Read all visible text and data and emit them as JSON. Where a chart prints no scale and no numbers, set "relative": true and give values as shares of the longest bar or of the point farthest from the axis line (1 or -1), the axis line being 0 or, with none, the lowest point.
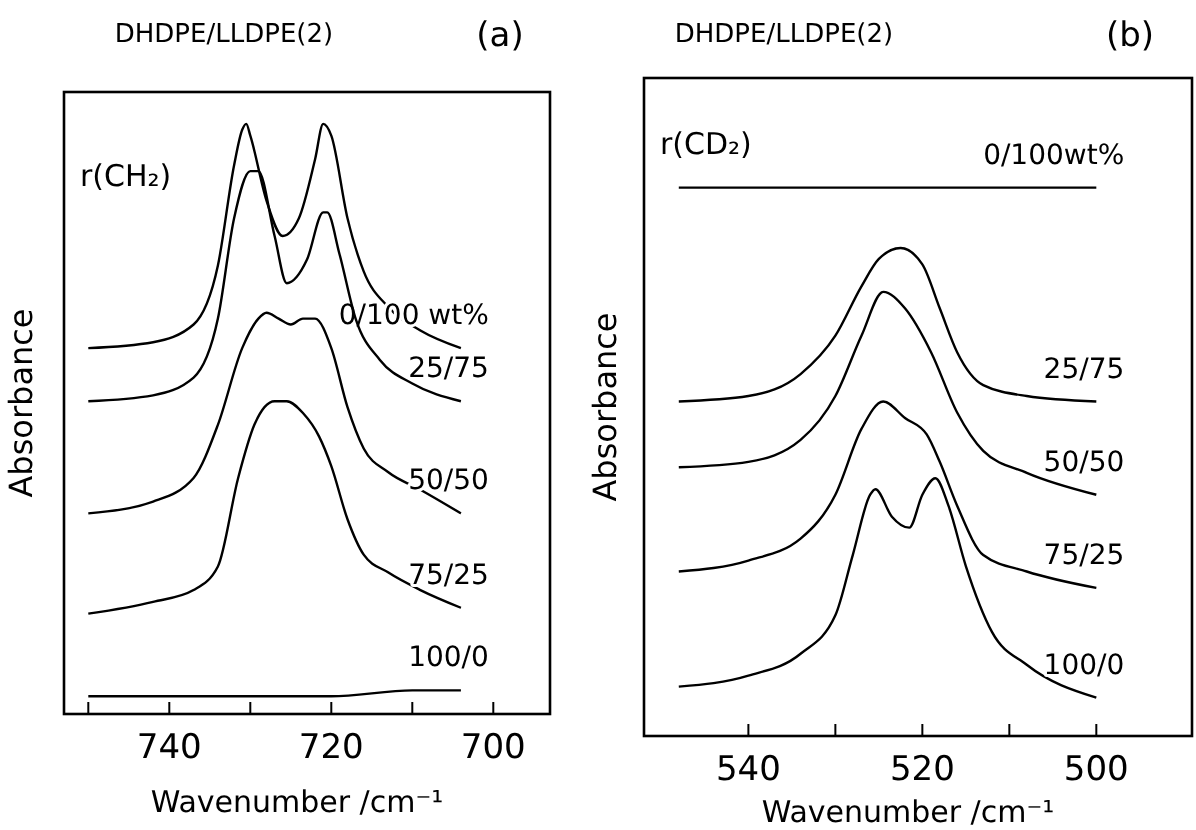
{
  "chart_data": [
    {
      "type": "line",
      "title": "DHDPE/LLDPE(2)",
      "xlabel": "Wavenumber /cm⁻¹",
      "ylabel": "Absorbance",
      "relative": true,
      "legend": false,
      "grid": false,
      "marker": "none",
      "line_style": "solid",
      "annotations": [
        "(a)",
        "r(CH₂)"
      ],
      "xlim": [
        753,
        693
      ],
      "xticks": [
        {
          "value": 750,
          "label": null
        },
        740,
        {
          "value": 730,
          "label": null
        },
        720,
        {
          "value": 710,
          "label": null
        },
        700
      ],
      "series": [
        {
          "name": "0/100 wt%",
          "color": "#000000",
          "x": [
            750,
            742,
            737,
            734,
            732,
            731,
            730.5,
            730,
            728,
            726,
            724,
            722,
            721,
            720,
            718,
            716,
            713,
            709,
            704
          ],
          "values": [
            0.62,
            0.63,
            0.66,
            0.76,
            0.93,
            0.99,
            1.0,
            0.98,
            0.87,
            0.81,
            0.84,
            0.94,
            1.0,
            0.98,
            0.84,
            0.75,
            0.69,
            0.65,
            0.62
          ]
        },
        {
          "name": "25/75",
          "color": "#000000",
          "x": [
            750,
            742,
            737,
            734,
            732,
            730,
            729,
            727,
            725.5,
            723,
            721,
            720.5,
            719,
            717,
            714,
            710,
            704
          ],
          "values": [
            0.53,
            0.54,
            0.57,
            0.67,
            0.84,
            0.92,
            0.92,
            0.81,
            0.73,
            0.77,
            0.85,
            0.85,
            0.78,
            0.67,
            0.6,
            0.56,
            0.53
          ]
        },
        {
          "name": "50/50",
          "color": "#000000",
          "x": [
            750,
            742,
            737,
            734,
            731,
            729,
            728,
            726.5,
            725,
            723.5,
            722,
            720,
            718,
            716,
            713,
            709,
            704
          ],
          "values": [
            0.34,
            0.36,
            0.4,
            0.49,
            0.62,
            0.67,
            0.68,
            0.67,
            0.66,
            0.67,
            0.67,
            0.62,
            0.52,
            0.45,
            0.41,
            0.38,
            0.34
          ]
        },
        {
          "name": "75/25",
          "color": "#000000",
          "x": [
            750,
            742,
            737,
            734,
            731.5,
            729.5,
            727,
            725.5,
            723.5,
            721.5,
            720,
            718,
            716,
            713,
            709,
            704
          ],
          "values": [
            0.17,
            0.19,
            0.21,
            0.25,
            0.4,
            0.49,
            0.53,
            0.53,
            0.51,
            0.47,
            0.42,
            0.33,
            0.27,
            0.24,
            0.21,
            0.18
          ]
        },
        {
          "name": "100/0",
          "color": "#000000",
          "x": [
            750,
            720,
            710,
            704
          ],
          "values": [
            0.03,
            0.03,
            0.04,
            0.04
          ]
        }
      ]
    },
    {
      "type": "line",
      "title": "DHDPE/LLDPE(2)",
      "xlabel": "Wavenumber /cm⁻¹",
      "ylabel": "Absorbance",
      "relative": true,
      "legend": false,
      "grid": false,
      "marker": "none",
      "line_style": "solid",
      "annotations": [
        "(b)",
        "r(CD₂)"
      ],
      "xlim": [
        552,
        489
      ],
      "xticks": [
        540,
        {
          "value": 530,
          "label": null
        },
        520,
        {
          "value": 510,
          "label": null
        },
        500
      ],
      "series": [
        {
          "name": "0/100wt%",
          "color": "#000000",
          "x": [
            548,
            540,
            530,
            520,
            500
          ],
          "values": [
            1.0,
            1.0,
            1.0,
            1.0,
            1.0
          ]
        },
        {
          "name": "25/75",
          "color": "#000000",
          "x": [
            548,
            540,
            534,
            530,
            527,
            525,
            522.5,
            520,
            518,
            516,
            513,
            508,
            500
          ],
          "values": [
            0.61,
            0.62,
            0.66,
            0.73,
            0.82,
            0.87,
            0.89,
            0.86,
            0.78,
            0.7,
            0.64,
            0.62,
            0.61
          ]
        },
        {
          "name": "50/50",
          "color": "#000000",
          "x": [
            548,
            540,
            534,
            530,
            527,
            524.5,
            522,
            519,
            516,
            513,
            508,
            500
          ],
          "values": [
            0.49,
            0.5,
            0.54,
            0.62,
            0.73,
            0.81,
            0.78,
            0.7,
            0.59,
            0.52,
            0.48,
            0.44
          ]
        },
        {
          "name": "75/25",
          "color": "#000000",
          "x": [
            548,
            540,
            534,
            530,
            527,
            524.5,
            522,
            519.5,
            518,
            516,
            513,
            508,
            500
          ],
          "values": [
            0.3,
            0.32,
            0.36,
            0.44,
            0.56,
            0.61,
            0.58,
            0.55,
            0.5,
            0.42,
            0.33,
            0.3,
            0.27
          ]
        },
        {
          "name": "100/0",
          "color": "#000000",
          "x": [
            548,
            540,
            534,
            530,
            528,
            526,
            525.4,
            523.5,
            521.5,
            520,
            518.5,
            517,
            515,
            512,
            508,
            500
          ],
          "values": [
            0.09,
            0.11,
            0.15,
            0.22,
            0.33,
            0.44,
            0.45,
            0.4,
            0.38,
            0.44,
            0.47,
            0.42,
            0.31,
            0.19,
            0.13,
            0.07
          ]
        }
      ]
    }
  ]
}
